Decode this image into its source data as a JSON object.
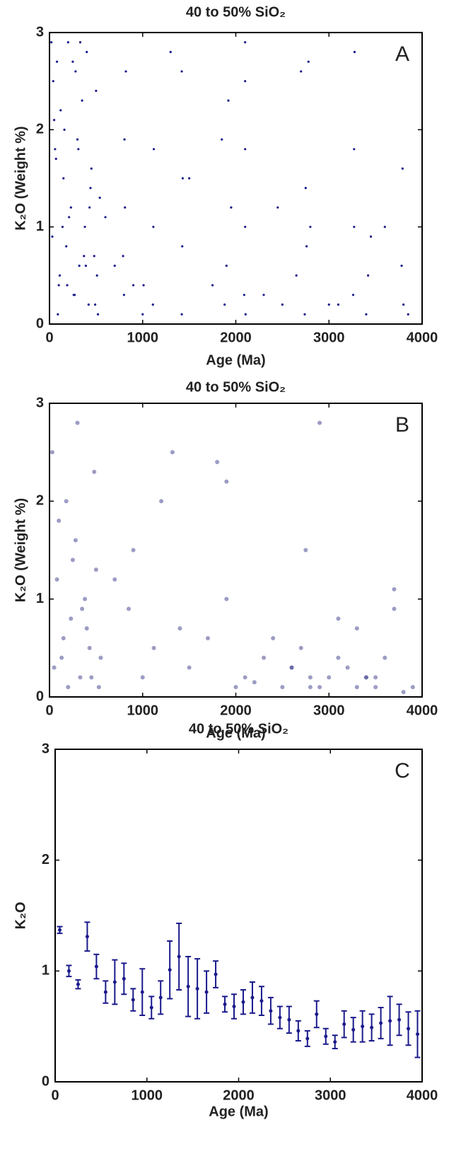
{
  "chart_data": [
    {
      "type": "scatter",
      "title": "40 to 50% SiO₂",
      "xlabel": "Age (Ma)",
      "ylabel": "K₂O (Weight %)",
      "annotation": "A",
      "color": "#1a1a8c",
      "xlim": [
        0,
        4000
      ],
      "ylim": [
        0,
        3
      ],
      "xticks": [
        0,
        1000,
        2000,
        3000,
        4000
      ],
      "yticks": [
        0,
        1,
        2,
        3
      ],
      "x": [
        20,
        40,
        60,
        80,
        100,
        120,
        150,
        180,
        200,
        230,
        260,
        280,
        300,
        320,
        350,
        380,
        400,
        420,
        450,
        480,
        500,
        520,
        540,
        30,
        70,
        110,
        160,
        210,
        270,
        330,
        390,
        440,
        490,
        50,
        90,
        140,
        190,
        250,
        310,
        370,
        430,
        510,
        800,
        810,
        820,
        790,
        805,
        1000,
        1010,
        1110,
        1115,
        1120,
        1300,
        1420,
        1425,
        1430,
        1420,
        1750,
        1850,
        1880,
        1900,
        1920,
        1950,
        2090,
        2100,
        2100,
        2100,
        2105,
        2100,
        2450,
        2500,
        2650,
        2700,
        2740,
        2750,
        2760,
        2780,
        2800,
        3100,
        3260,
        3270,
        3270,
        3275,
        3400,
        3420,
        3450,
        3780,
        3790,
        3800,
        3850,
        600,
        700,
        900,
        1500,
        2300,
        3000,
        3600
      ],
      "y": [
        2.9,
        2.5,
        1.8,
        2.7,
        0.4,
        2.2,
        1.5,
        0.8,
        2.9,
        1.2,
        0.3,
        2.6,
        1.9,
        0.6,
        2.3,
        1.0,
        2.8,
        0.2,
        1.6,
        0.7,
        2.4,
        0.1,
        1.3,
        0.9,
        1.7,
        0.5,
        2.0,
        1.1,
        0.3,
        2.9,
        0.6,
        1.4,
        0.2,
        2.1,
        0.1,
        1.0,
        0.4,
        2.7,
        1.8,
        0.7,
        1.2,
        0.5,
        0.3,
        1.2,
        2.6,
        0.7,
        1.9,
        0.1,
        0.4,
        0.2,
        1.0,
        1.8,
        2.8,
        0.1,
        0.8,
        1.5,
        2.6,
        0.4,
        1.9,
        0.2,
        0.6,
        2.3,
        1.2,
        0.3,
        2.9,
        1.8,
        1.0,
        0.1,
        2.5,
        1.2,
        0.2,
        0.5,
        2.6,
        0.1,
        1.4,
        0.8,
        2.7,
        1.0,
        0.2,
        0.3,
        1.8,
        1.0,
        2.8,
        0.1,
        0.5,
        0.9,
        0.6,
        1.6,
        0.2,
        0.1,
        1.1,
        0.6,
        0.4,
        1.5,
        0.3,
        0.2,
        1.0
      ]
    },
    {
      "type": "scatter",
      "title": "40 to 50% SiO₂",
      "xlabel": "Age (Ma)",
      "ylabel": "K₂O (Weight %)",
      "annotation": "B",
      "color": "#3a3a8c",
      "xlim": [
        0,
        4000
      ],
      "ylim": [
        0,
        3
      ],
      "xticks": [
        0,
        1000,
        2000,
        3000,
        4000
      ],
      "yticks": [
        0,
        1,
        2,
        3
      ],
      "x": [
        30,
        80,
        130,
        180,
        230,
        280,
        330,
        380,
        430,
        480,
        530,
        50,
        150,
        250,
        350,
        450,
        550,
        100,
        200,
        300,
        400,
        500,
        850,
        1120,
        1320,
        1800,
        1900,
        2200,
        2500,
        2600,
        2700,
        2750,
        2800,
        2900,
        3000,
        3100,
        3200,
        3300,
        3400,
        3500,
        3600,
        3700,
        3800,
        3900,
        1000,
        1500,
        2000,
        2400,
        2900,
        3300,
        3700,
        700,
        1200,
        1700,
        2100,
        2600,
        3100,
        3500,
        900,
        1400,
        1900,
        2300,
        2800,
        3400
      ],
      "y": [
        2.5,
        1.2,
        0.4,
        2.0,
        0.8,
        1.6,
        0.2,
        1.0,
        0.5,
        2.3,
        0.1,
        0.3,
        0.6,
        1.4,
        0.9,
        0.2,
        0.4,
        1.8,
        0.1,
        2.8,
        0.7,
        1.3,
        0.9,
        0.5,
        2.5,
        2.4,
        1.0,
        0.15,
        0.1,
        0.3,
        0.5,
        1.5,
        0.2,
        0.1,
        0.2,
        0.8,
        0.3,
        0.1,
        0.2,
        0.1,
        0.4,
        0.9,
        0.05,
        0.1,
        0.2,
        0.3,
        0.1,
        0.6,
        2.8,
        0.7,
        1.1,
        1.2,
        2.0,
        0.6,
        0.2,
        0.3,
        0.4,
        0.2,
        1.5,
        0.7,
        2.2,
        0.4,
        0.1,
        0.2
      ]
    },
    {
      "type": "errorbar",
      "title": "40 to 50% SiO₂",
      "xlabel": "Age (Ma)",
      "ylabel": "K₂O",
      "annotation": "C",
      "color": "#1a1a8c",
      "xlim": [
        0,
        4000
      ],
      "ylim": [
        0,
        3
      ],
      "xticks": [
        0,
        1000,
        2000,
        3000,
        4000
      ],
      "yticks": [
        0,
        1,
        2,
        3
      ],
      "x": [
        50,
        150,
        250,
        350,
        450,
        550,
        650,
        750,
        850,
        950,
        1050,
        1150,
        1250,
        1350,
        1450,
        1550,
        1650,
        1750,
        1850,
        1950,
        2050,
        2150,
        2250,
        2350,
        2450,
        2550,
        2650,
        2750,
        2850,
        2950,
        3050,
        3150,
        3250,
        3350,
        3450,
        3550,
        3650,
        3750,
        3850,
        3950
      ],
      "values": [
        1.37,
        1.0,
        0.88,
        1.31,
        1.04,
        0.81,
        0.9,
        0.93,
        0.74,
        0.81,
        0.67,
        0.76,
        1.01,
        1.13,
        0.86,
        0.84,
        0.81,
        0.97,
        0.7,
        0.68,
        0.72,
        0.76,
        0.73,
        0.64,
        0.58,
        0.56,
        0.46,
        0.39,
        0.61,
        0.41,
        0.36,
        0.52,
        0.47,
        0.5,
        0.49,
        0.53,
        0.55,
        0.56,
        0.48,
        0.43
      ],
      "errors": [
        0.03,
        0.05,
        0.04,
        0.13,
        0.11,
        0.1,
        0.2,
        0.14,
        0.1,
        0.21,
        0.1,
        0.15,
        0.26,
        0.3,
        0.27,
        0.27,
        0.19,
        0.12,
        0.07,
        0.11,
        0.11,
        0.14,
        0.13,
        0.12,
        0.1,
        0.12,
        0.09,
        0.07,
        0.12,
        0.07,
        0.06,
        0.12,
        0.11,
        0.14,
        0.12,
        0.14,
        0.22,
        0.14,
        0.15,
        0.21
      ]
    }
  ]
}
